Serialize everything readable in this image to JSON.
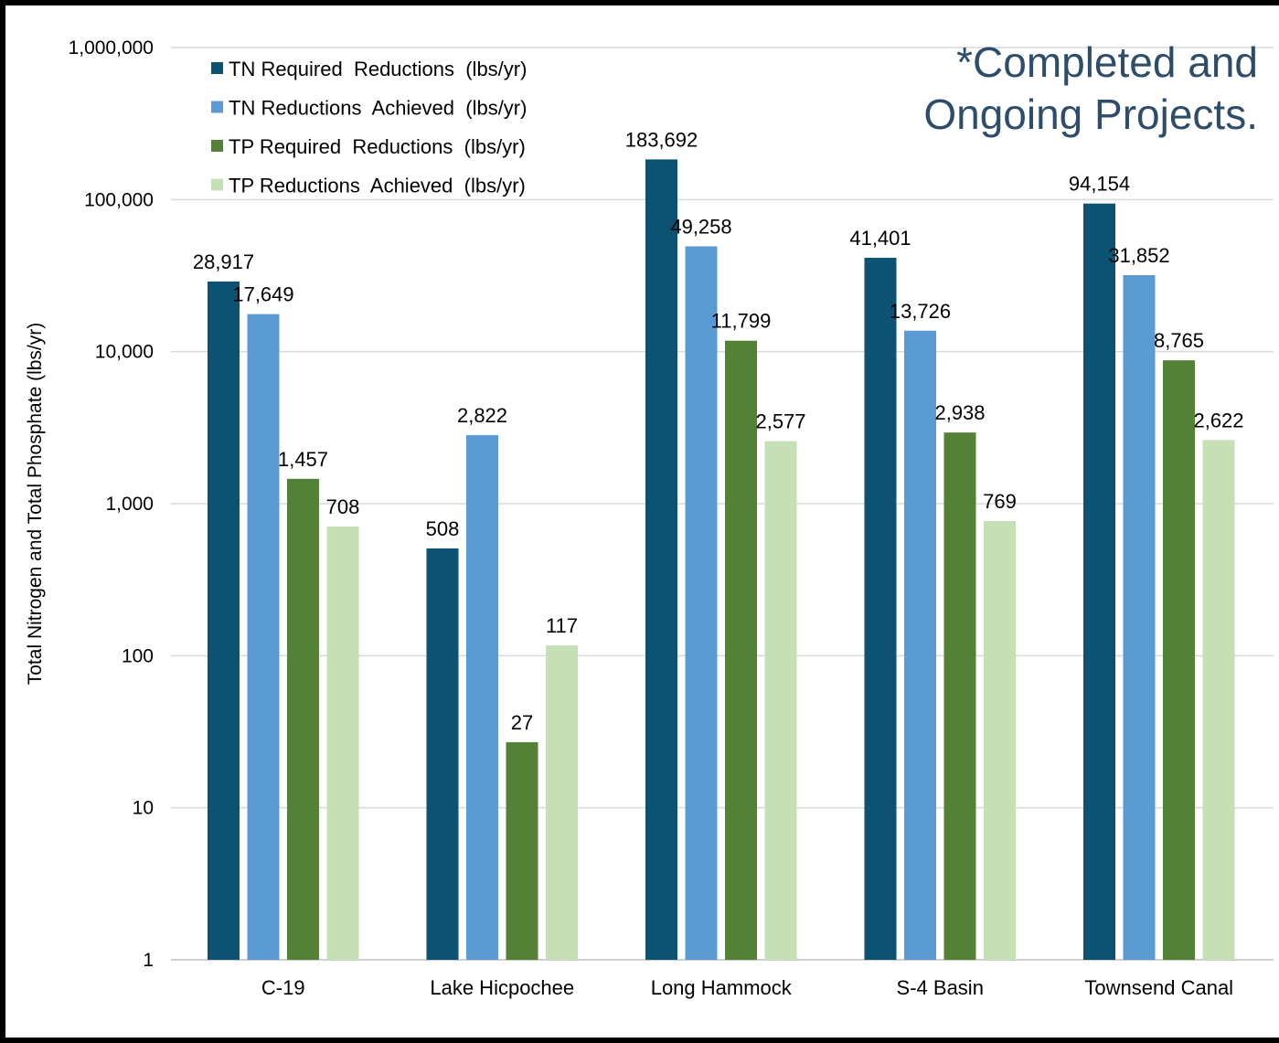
{
  "chart_data": {
    "type": "bar",
    "scale": "log",
    "ylim": [
      1,
      1000000
    ],
    "ylabel": "Total Nitrogen and Total Phosphate (lbs/yr)",
    "yticks": [
      "1",
      "10",
      "100",
      "1,000",
      "10,000",
      "100,000",
      "1,000,000"
    ],
    "categories": [
      "C-19",
      "Lake Hicpochee",
      "Long Hammock",
      "S-4 Basin",
      "Townsend Canal"
    ],
    "series": [
      {
        "name": "TN Required  Reductions  (lbs/yr)",
        "color": "#0b5273",
        "values": [
          28917,
          508,
          183692,
          41401,
          94154
        ],
        "labels": [
          "28,917",
          "508",
          "183,692",
          "41,401",
          "94,154"
        ]
      },
      {
        "name": "TN Reductions  Achieved  (lbs/yr)",
        "color": "#5b9bd5",
        "values": [
          17649,
          2822,
          49258,
          13726,
          31852
        ],
        "labels": [
          "17,649",
          "2,822",
          "49,258",
          "13,726",
          "31,852"
        ]
      },
      {
        "name": "TP Required  Reductions  (lbs/yr)",
        "color": "#538135",
        "values": [
          1457,
          27,
          11799,
          2938,
          8765
        ],
        "labels": [
          "1,457",
          "27",
          "11,799",
          "2,938",
          "8,765"
        ]
      },
      {
        "name": "TP Reductions  Achieved  (lbs/yr)",
        "color": "#c5e0b4",
        "values": [
          708,
          117,
          2577,
          769,
          2622
        ],
        "labels": [
          "708",
          "117",
          "2,577",
          "769",
          "2,622"
        ]
      }
    ],
    "grid": true,
    "legend_position": "top-left",
    "annotation": [
      "*Completed and",
      "Ongoing Projects."
    ]
  }
}
